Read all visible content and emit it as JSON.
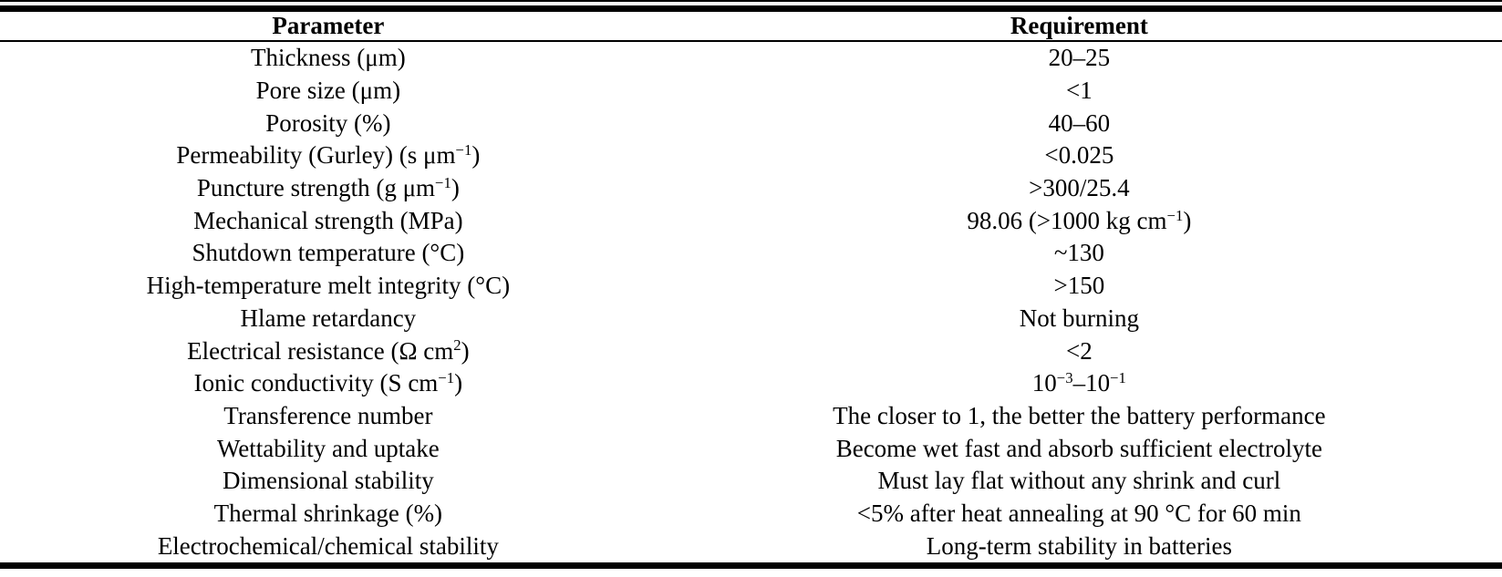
{
  "table": {
    "columns": [
      {
        "id": "parameter",
        "label": "Parameter"
      },
      {
        "id": "requirement",
        "label": "Requirement"
      }
    ],
    "rows": [
      {
        "parameter": "Thickness (μm)",
        "requirement": "20–25"
      },
      {
        "parameter": "Pore size (μm)",
        "requirement": "<1"
      },
      {
        "parameter": "Porosity (%)",
        "requirement": "40–60"
      },
      {
        "parameter": "Permeability (Gurley) (s μm^{−1})",
        "requirement": "<0.025"
      },
      {
        "parameter": "Puncture strength (g μm^{−1})",
        "requirement": ">300/25.4"
      },
      {
        "parameter": "Mechanical strength (MPa)",
        "requirement": "98.06 (>1000 kg cm^{−1})"
      },
      {
        "parameter": "Shutdown temperature (°C)",
        "requirement": "~130"
      },
      {
        "parameter": "High-temperature melt integrity (°C)",
        "requirement": ">150"
      },
      {
        "parameter": "Hlame retardancy",
        "requirement": "Not burning"
      },
      {
        "parameter": "Electrical resistance (Ω cm^{2})",
        "requirement": "<2"
      },
      {
        "parameter": "Ionic conductivity (S cm^{−1})",
        "requirement": "10^{−3}–10^{−1}"
      },
      {
        "parameter": "Transference number",
        "requirement": "The closer to 1, the better the battery performance"
      },
      {
        "parameter": "Wettability and uptake",
        "requirement": "Become wet fast and absorb sufficient electrolyte"
      },
      {
        "parameter": "Dimensional stability",
        "requirement": "Must lay flat without any shrink and curl"
      },
      {
        "parameter": "Thermal shrinkage (%)",
        "requirement": "<5% after heat annealing at 90 °C for 60 min"
      },
      {
        "parameter": "Electrochemical/chemical stability",
        "requirement": "Long-term stability in batteries"
      }
    ],
    "colors": {
      "text": "#000000",
      "background": "#ffffff",
      "rule": "#000000"
    }
  }
}
